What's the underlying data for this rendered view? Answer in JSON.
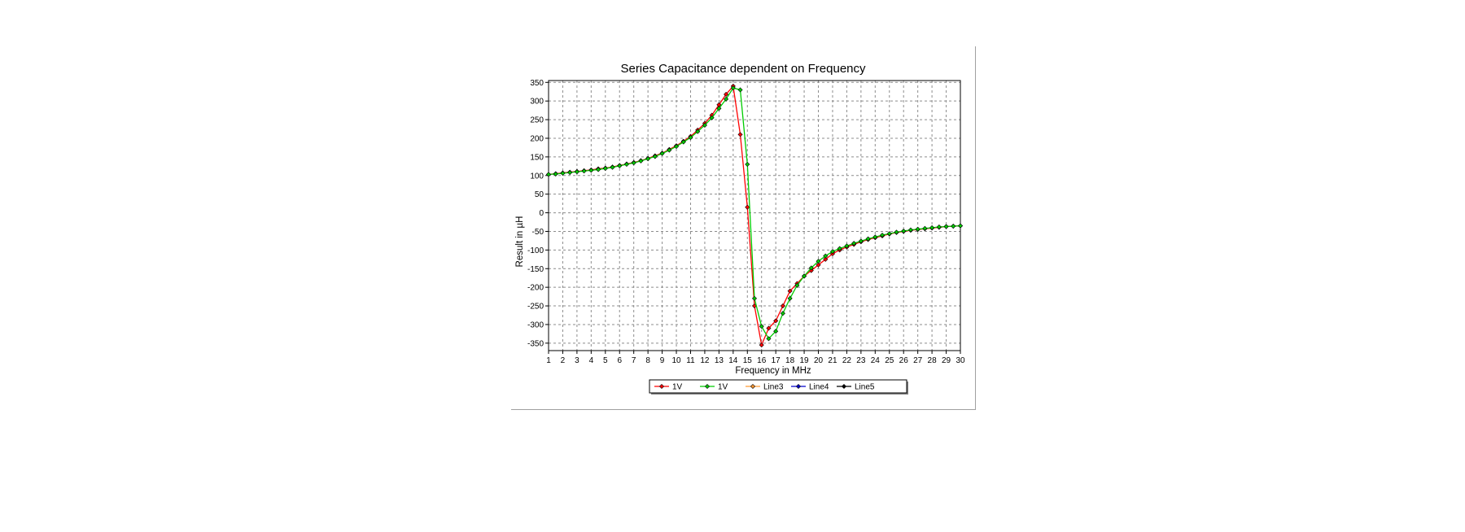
{
  "chart_data": {
    "type": "line",
    "title": "Series Capacitance dependent on Frequency",
    "xlabel": "Frequency in MHz",
    "ylabel": "Result in µH",
    "xlim": [
      1,
      30
    ],
    "ylim": [
      -370,
      355
    ],
    "x_ticks": [
      1,
      2,
      3,
      4,
      5,
      6,
      7,
      8,
      9,
      10,
      11,
      12,
      13,
      14,
      15,
      16,
      17,
      18,
      19,
      20,
      21,
      22,
      23,
      24,
      25,
      26,
      27,
      28,
      29,
      30
    ],
    "y_ticks": [
      350,
      300,
      250,
      200,
      150,
      100,
      50,
      0,
      -50,
      -100,
      -150,
      -200,
      -250,
      -300,
      -350
    ],
    "grid": true,
    "legend_position": "bottom",
    "series": [
      {
        "name": "1V",
        "color": "#ff0000",
        "x": [
          1,
          1.5,
          2,
          2.5,
          3,
          3.5,
          4,
          4.5,
          5,
          5.5,
          6,
          6.5,
          7,
          7.5,
          8,
          8.5,
          9,
          9.5,
          10,
          10.5,
          11,
          11.5,
          12,
          12.5,
          13,
          13.5,
          14,
          14.5,
          15,
          15.5,
          16,
          16.5,
          17,
          17.5,
          18,
          18.5,
          19,
          19.5,
          20,
          20.5,
          21,
          21.5,
          22,
          22.5,
          23,
          23.5,
          24,
          24.5,
          25,
          25.5,
          26,
          26.5,
          27,
          27.5,
          28,
          28.5,
          29,
          29.5,
          30
        ],
        "values": [
          103,
          105,
          107,
          109,
          111,
          113,
          115,
          118,
          120,
          123,
          127,
          131,
          135,
          140,
          146,
          153,
          160,
          170,
          180,
          192,
          205,
          222,
          240,
          262,
          290,
          318,
          340,
          210,
          15,
          -250,
          -355,
          -310,
          -290,
          -250,
          -210,
          -190,
          -170,
          -155,
          -140,
          -125,
          -110,
          -100,
          -92,
          -85,
          -78,
          -72,
          -67,
          -62,
          -57,
          -53,
          -50,
          -47,
          -45,
          -43,
          -41,
          -39,
          -37,
          -36,
          -35
        ]
      },
      {
        "name": "1V",
        "color": "#00cc00",
        "x": [
          1,
          1.5,
          2,
          2.5,
          3,
          3.5,
          4,
          4.5,
          5,
          5.5,
          6,
          6.5,
          7,
          7.5,
          8,
          8.5,
          9,
          9.5,
          10,
          10.5,
          11,
          11.5,
          12,
          12.5,
          13,
          13.5,
          14,
          14.5,
          15,
          15.5,
          16,
          16.5,
          17,
          17.5,
          18,
          18.5,
          19,
          19.5,
          20,
          20.5,
          21,
          21.5,
          22,
          22.5,
          23,
          23.5,
          24,
          24.5,
          25,
          25.5,
          26,
          26.5,
          27,
          27.5,
          28,
          28.5,
          29,
          29.5,
          30
        ],
        "values": [
          103,
          104,
          106,
          108,
          110,
          112,
          114,
          116,
          119,
          122,
          126,
          130,
          134,
          139,
          145,
          151,
          159,
          168,
          178,
          190,
          202,
          218,
          235,
          255,
          280,
          305,
          335,
          330,
          130,
          -230,
          -305,
          -338,
          -318,
          -270,
          -230,
          -195,
          -170,
          -148,
          -130,
          -116,
          -104,
          -96,
          -89,
          -82,
          -76,
          -70,
          -65,
          -60,
          -56,
          -52,
          -49,
          -46,
          -44,
          -42,
          -40,
          -38,
          -37,
          -36,
          -35
        ]
      },
      {
        "name": "Line3",
        "color": "#ff9933",
        "x": [],
        "values": []
      },
      {
        "name": "Line4",
        "color": "#0000cc",
        "x": [],
        "values": []
      },
      {
        "name": "Line5",
        "color": "#000000",
        "x": [],
        "values": []
      }
    ]
  }
}
